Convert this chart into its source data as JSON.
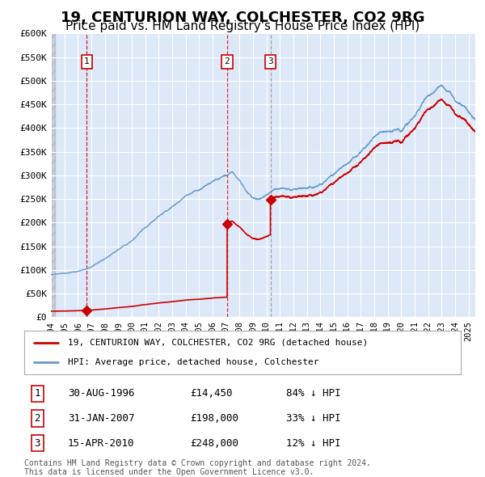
{
  "title": "19, CENTURION WAY, COLCHESTER, CO2 9RG",
  "subtitle": "Price paid vs. HM Land Registry's House Price Index (HPI)",
  "title_fontsize": 13,
  "subtitle_fontsize": 11,
  "plot_bg_color": "#dde8f8",
  "hpi_color": "#6699cc",
  "price_color": "#cc0000",
  "marker_color": "#cc0000",
  "ylim": [
    0,
    600000
  ],
  "yticks": [
    0,
    50000,
    100000,
    150000,
    200000,
    250000,
    300000,
    350000,
    400000,
    450000,
    500000,
    550000,
    600000
  ],
  "ytick_labels": [
    "£0",
    "£50K",
    "£100K",
    "£150K",
    "£200K",
    "£250K",
    "£300K",
    "£350K",
    "£400K",
    "£450K",
    "£500K",
    "£550K",
    "£600K"
  ],
  "sale1_date": 1996.66,
  "sale1_price": 14450,
  "sale2_date": 2007.08,
  "sale2_price": 198000,
  "sale3_date": 2010.29,
  "sale3_price": 248000,
  "sale1_label": "1",
  "sale2_label": "2",
  "sale3_label": "3",
  "legend_line1": "19, CENTURION WAY, COLCHESTER, CO2 9RG (detached house)",
  "legend_line2": "HPI: Average price, detached house, Colchester",
  "table_row1": [
    "1",
    "30-AUG-1996",
    "£14,450",
    "84% ↓ HPI"
  ],
  "table_row2": [
    "2",
    "31-JAN-2007",
    "£198,000",
    "33% ↓ HPI"
  ],
  "table_row3": [
    "3",
    "15-APR-2010",
    "£248,000",
    "12% ↓ HPI"
  ],
  "footer": "Contains HM Land Registry data © Crown copyright and database right 2024.\nThis data is licensed under the Open Government Licence v3.0.",
  "xmin": 1994,
  "xmax": 2025.5,
  "hpi_key_years": [
    1994,
    1995,
    1996,
    1997,
    1998,
    1999,
    2000,
    2001,
    2002,
    2003,
    2004,
    2005,
    2006,
    2007.0,
    2007.5,
    2008.0,
    2008.5,
    2009.0,
    2009.5,
    2010.0,
    2010.5,
    2011,
    2012,
    2013,
    2014,
    2015,
    2016,
    2017,
    2018,
    2019,
    2020,
    2021,
    2022,
    2023,
    2024,
    2025.5
  ],
  "hpi_key_vals": [
    90000,
    92000,
    95000,
    105000,
    120000,
    140000,
    160000,
    185000,
    210000,
    235000,
    260000,
    275000,
    290000,
    300000,
    305000,
    290000,
    270000,
    255000,
    250000,
    255000,
    265000,
    270000,
    272000,
    280000,
    295000,
    315000,
    340000,
    370000,
    400000,
    415000,
    410000,
    445000,
    500000,
    520000,
    490000,
    450000
  ]
}
